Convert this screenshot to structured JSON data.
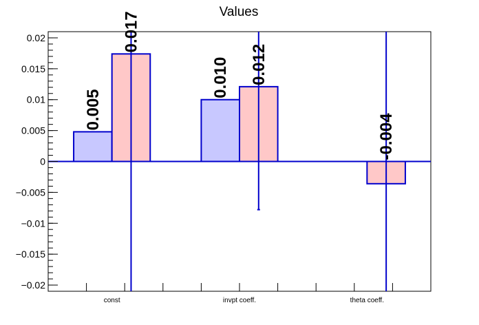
{
  "chart_data": {
    "type": "bar",
    "title": "Values",
    "xlabel": "",
    "ylabel": "",
    "categories": [
      "const",
      "invpt coeff.",
      "theta coeff."
    ],
    "series": [
      {
        "color": "#c8c8ff",
        "values": [
          0.0048,
          0.01,
          null
        ],
        "labels": [
          "0.005",
          "0.010",
          null
        ]
      },
      {
        "color": "#ffc8c8",
        "values": [
          0.0174,
          0.0121,
          -0.0036
        ],
        "labels": [
          "0.017",
          "0.012",
          "-0.004"
        ],
        "error_low": [
          -0.021,
          -0.0078,
          -0.021
        ],
        "error_high": [
          0.021,
          0.021,
          0.021
        ]
      }
    ],
    "yticks": [
      "0.02",
      "0.015",
      "0.01",
      "0.005",
      "0",
      "−0.005",
      "−0.01",
      "−0.015",
      "−0.02"
    ],
    "ytick_values": [
      0.02,
      0.015,
      0.01,
      0.005,
      0,
      -0.005,
      -0.01,
      -0.015,
      -0.02
    ],
    "ylim": [
      -0.021,
      0.021
    ],
    "grid": false,
    "legend": "none",
    "bar_edge_color": "#0000cc",
    "error_color": "#0000cc"
  }
}
